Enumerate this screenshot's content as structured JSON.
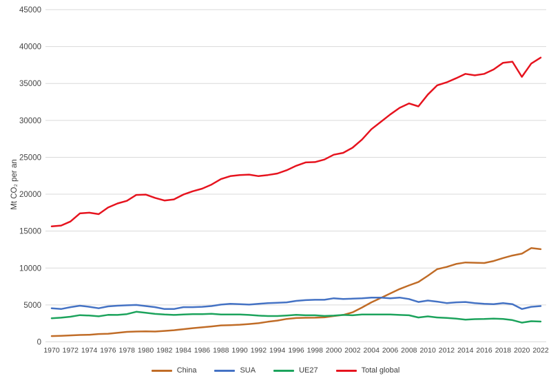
{
  "chart_data": {
    "type": "line",
    "title": "",
    "xlabel": "",
    "ylabel": "Mt CO₂ per an",
    "ylim": [
      0,
      45000
    ],
    "yticks": [
      0,
      5000,
      10000,
      15000,
      20000,
      25000,
      30000,
      35000,
      40000,
      45000
    ],
    "xtick_labels": [
      1970,
      1972,
      1974,
      1976,
      1978,
      1980,
      1982,
      1984,
      1986,
      1988,
      1990,
      1992,
      1994,
      1996,
      1998,
      2000,
      2002,
      2004,
      2006,
      2008,
      2010,
      2012,
      2014,
      2016,
      2018,
      2020,
      2022
    ],
    "grid": "horizontal",
    "legend_position": "bottom",
    "x": [
      1970,
      1971,
      1972,
      1973,
      1974,
      1975,
      1976,
      1977,
      1978,
      1979,
      1980,
      1981,
      1982,
      1983,
      1984,
      1985,
      1986,
      1987,
      1988,
      1989,
      1990,
      1991,
      1992,
      1993,
      1994,
      1995,
      1996,
      1997,
      1998,
      1999,
      2000,
      2001,
      2002,
      2003,
      2004,
      2005,
      2006,
      2007,
      2008,
      2009,
      2010,
      2011,
      2012,
      2013,
      2014,
      2015,
      2016,
      2017,
      2018,
      2019,
      2020,
      2021,
      2022
    ],
    "series": [
      {
        "name": "China",
        "color": "#C06C27",
        "values": [
          780,
          820,
          880,
          930,
          960,
          1060,
          1100,
          1220,
          1350,
          1400,
          1420,
          1400,
          1480,
          1580,
          1720,
          1860,
          1970,
          2090,
          2230,
          2270,
          2320,
          2420,
          2530,
          2720,
          2880,
          3110,
          3230,
          3260,
          3270,
          3320,
          3500,
          3650,
          4000,
          4650,
          5350,
          5950,
          6550,
          7150,
          7650,
          8100,
          8950,
          9850,
          10150,
          10550,
          10750,
          10720,
          10680,
          10950,
          11350,
          11700,
          11950,
          12700,
          12550
        ]
      },
      {
        "name": "SUA",
        "color": "#4472C4",
        "values": [
          4550,
          4450,
          4700,
          4900,
          4750,
          4550,
          4800,
          4900,
          4950,
          5000,
          4850,
          4700,
          4450,
          4450,
          4700,
          4700,
          4750,
          4850,
          5050,
          5150,
          5100,
          5050,
          5150,
          5250,
          5300,
          5350,
          5550,
          5650,
          5700,
          5700,
          5900,
          5800,
          5850,
          5900,
          6000,
          6000,
          5900,
          6000,
          5800,
          5400,
          5600,
          5450,
          5250,
          5350,
          5400,
          5250,
          5150,
          5100,
          5250,
          5100,
          4450,
          4750,
          4850
        ]
      },
      {
        "name": "UE27",
        "color": "#1CA35C",
        "values": [
          3200,
          3270,
          3400,
          3620,
          3560,
          3460,
          3660,
          3650,
          3760,
          4080,
          3940,
          3790,
          3700,
          3650,
          3700,
          3760,
          3760,
          3800,
          3700,
          3700,
          3700,
          3650,
          3550,
          3500,
          3500,
          3560,
          3660,
          3600,
          3600,
          3510,
          3550,
          3650,
          3600,
          3700,
          3700,
          3700,
          3700,
          3650,
          3600,
          3300,
          3450,
          3300,
          3250,
          3150,
          3000,
          3080,
          3100,
          3150,
          3100,
          2950,
          2600,
          2800,
          2750
        ]
      },
      {
        "name": "Total global",
        "color": "#E6131E",
        "values": [
          15650,
          15750,
          16300,
          17400,
          17500,
          17300,
          18200,
          18750,
          19100,
          19900,
          19950,
          19500,
          19150,
          19300,
          19950,
          20400,
          20750,
          21300,
          22050,
          22450,
          22600,
          22650,
          22450,
          22600,
          22800,
          23250,
          23850,
          24300,
          24350,
          24700,
          25350,
          25600,
          26300,
          27400,
          28800,
          29800,
          30800,
          31700,
          32300,
          31900,
          33500,
          34750,
          35150,
          35700,
          36300,
          36100,
          36300,
          36900,
          37800,
          37950,
          35900,
          37700,
          38500
        ]
      }
    ]
  },
  "style": {
    "gridline_color": "#D9D9D9",
    "tick_text_color": "#444444",
    "axis_title_color": "#3b3b3b"
  }
}
